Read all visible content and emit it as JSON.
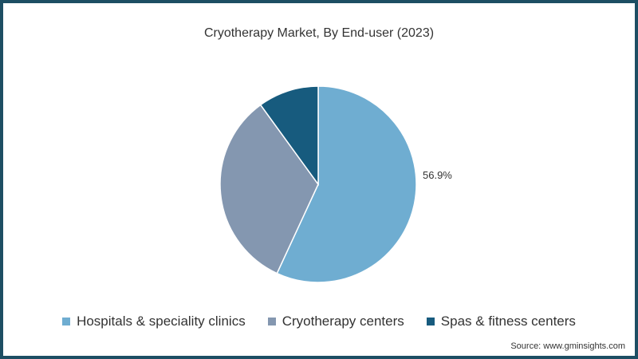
{
  "title": "Cryotherapy Market, By End-user (2023)",
  "source": "Source: www.gminsights.com",
  "colors": {
    "hospitals": "#6fadd1",
    "cryotherapy_centers": "#8497b0",
    "spas": "#175b7e",
    "border": "#1d4e63"
  },
  "legend": [
    {
      "label": "Hospitals & speciality clinics",
      "color": "#6fadd1"
    },
    {
      "label": "Cryotherapy centers",
      "color": "#8497b0"
    },
    {
      "label": "Spas & fitness centers",
      "color": "#175b7e"
    }
  ],
  "labels": {
    "hospitals_pct": "56.9%"
  },
  "chart_data": {
    "type": "pie",
    "title": "Cryotherapy Market, By End-user (2023)",
    "categories": [
      "Hospitals & speciality clinics",
      "Cryotherapy centers",
      "Spas & fitness centers"
    ],
    "values": [
      56.9,
      33.1,
      10.0
    ],
    "data_labels": [
      "56.9%",
      "",
      ""
    ],
    "start_angle": "12 o'clock, clockwise",
    "legend_position": "bottom",
    "source": "Source: www.gminsights.com"
  }
}
